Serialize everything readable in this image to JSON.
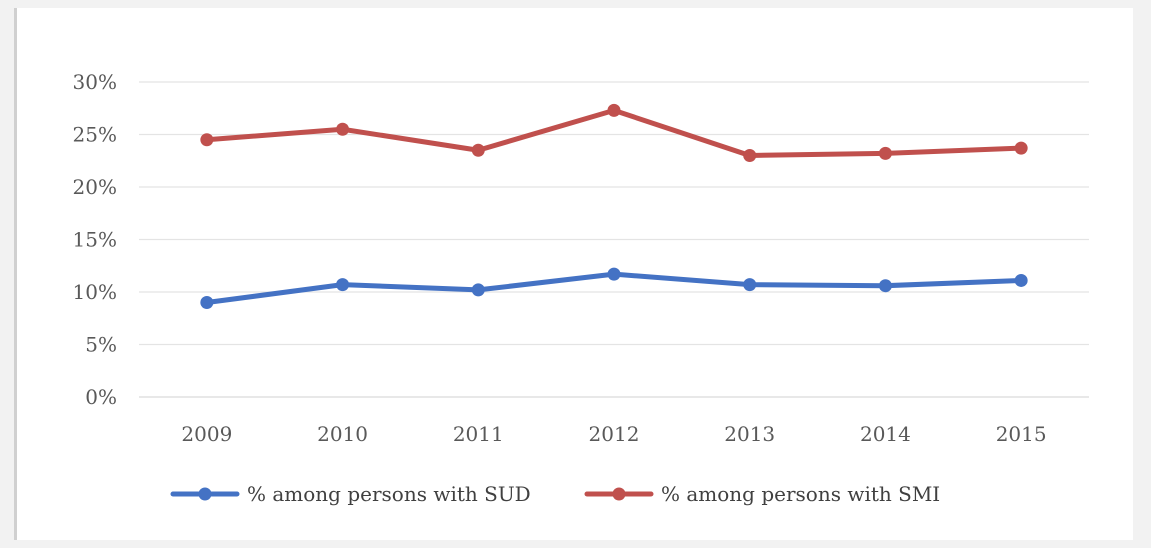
{
  "chart_data": {
    "type": "line",
    "title": "",
    "xlabel": "",
    "ylabel": "",
    "x": [
      "2009",
      "2010",
      "2011",
      "2012",
      "2013",
      "2014",
      "2015"
    ],
    "ylim": [
      0,
      30
    ],
    "yticks": [
      0,
      5,
      10,
      15,
      20,
      25,
      30
    ],
    "ytick_labels": [
      "0%",
      "5%",
      "10%",
      "15%",
      "20%",
      "25%",
      "30%"
    ],
    "grid": true,
    "legend_position": "bottom",
    "series": [
      {
        "name": "% among persons with SUD",
        "color": "#4472c4",
        "values": [
          9.0,
          10.7,
          10.2,
          11.7,
          10.7,
          10.6,
          11.1
        ]
      },
      {
        "name": "% among persons with SMI",
        "color": "#c0504d",
        "values": [
          24.5,
          25.5,
          23.5,
          27.3,
          23.0,
          23.2,
          23.7
        ]
      }
    ]
  }
}
